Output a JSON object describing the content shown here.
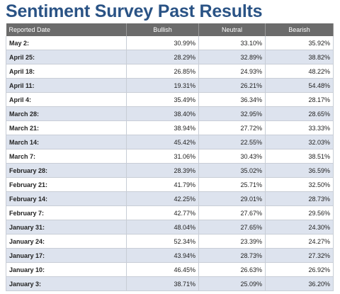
{
  "header": {
    "title": "Sentiment Survey Past Results"
  },
  "table": {
    "columns": [
      "Reported Date",
      "Bullish",
      "Neutral",
      "Bearish"
    ],
    "rows": [
      [
        "May 2:",
        "30.99%",
        "33.10%",
        "35.92%"
      ],
      [
        "April 25:",
        "28.29%",
        "32.89%",
        "38.82%"
      ],
      [
        "April 18:",
        "26.85%",
        "24.93%",
        "48.22%"
      ],
      [
        "April 11:",
        "19.31%",
        "26.21%",
        "54.48%"
      ],
      [
        "April 4:",
        "35.49%",
        "36.34%",
        "28.17%"
      ],
      [
        "March 28:",
        "38.40%",
        "32.95%",
        "28.65%"
      ],
      [
        "March 21:",
        "38.94%",
        "27.72%",
        "33.33%"
      ],
      [
        "March 14:",
        "45.42%",
        "22.55%",
        "32.03%"
      ],
      [
        "March 7:",
        "31.06%",
        "30.43%",
        "38.51%"
      ],
      [
        "February 28:",
        "28.39%",
        "35.02%",
        "36.59%"
      ],
      [
        "February 21:",
        "41.79%",
        "25.71%",
        "32.50%"
      ],
      [
        "February 14:",
        "42.25%",
        "29.01%",
        "28.73%"
      ],
      [
        "February 7:",
        "42.77%",
        "27.67%",
        "29.56%"
      ],
      [
        "January 31:",
        "48.04%",
        "27.65%",
        "24.30%"
      ],
      [
        "January 24:",
        "52.34%",
        "23.39%",
        "24.27%"
      ],
      [
        "January 17:",
        "43.94%",
        "28.73%",
        "27.32%"
      ],
      [
        "January 10:",
        "46.45%",
        "26.63%",
        "26.92%"
      ],
      [
        "January 3:",
        "38.71%",
        "25.09%",
        "36.20%"
      ]
    ]
  }
}
